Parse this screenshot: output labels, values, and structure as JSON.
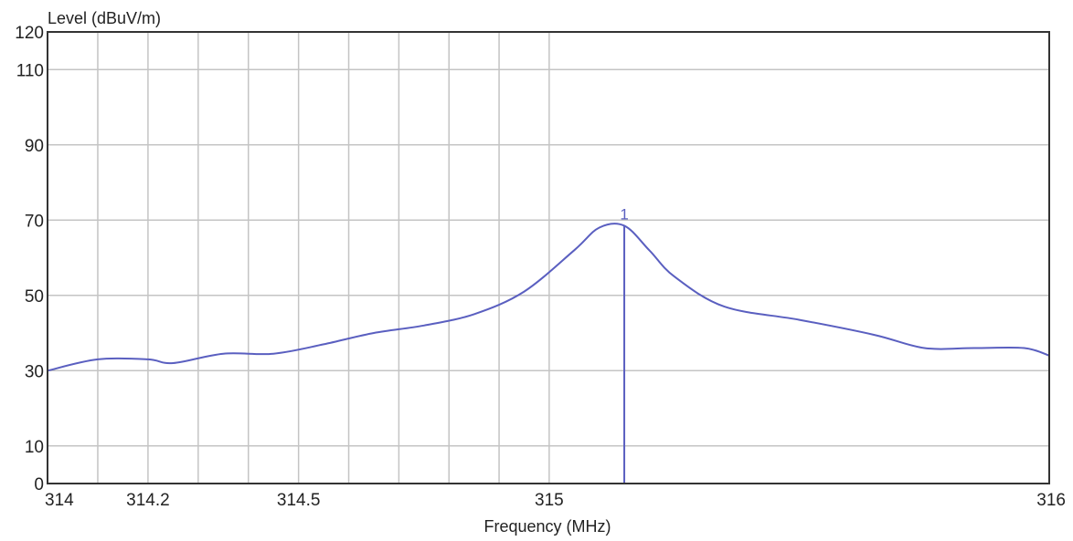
{
  "chart_data": {
    "type": "line",
    "title": "",
    "xlabel": "Frequency (MHz)",
    "ylabel": "Level (dBuV/m)",
    "xlim": [
      314,
      316
    ],
    "ylim": [
      0,
      120
    ],
    "x_scale": "log",
    "grid": true,
    "x_ticks": [
      {
        "value": 314,
        "label": "314"
      },
      {
        "value": 314.2,
        "label": "314.2"
      },
      {
        "value": 314.5,
        "label": "314.5"
      },
      {
        "value": 315,
        "label": "315"
      },
      {
        "value": 316,
        "label": "316"
      }
    ],
    "x_gridlines": [
      314.1,
      314.2,
      314.3,
      314.4,
      314.5,
      314.6,
      314.7,
      314.8,
      314.9,
      315
    ],
    "y_ticks": [
      0,
      10,
      30,
      50,
      70,
      90,
      110,
      120
    ],
    "y_gridlines": [
      10,
      30,
      50,
      70,
      90,
      110
    ],
    "series": [
      {
        "color": "#5a5fc0",
        "x": [
          314.0,
          314.1,
          314.2,
          314.25,
          314.35,
          314.45,
          314.55,
          314.65,
          314.75,
          314.85,
          314.95,
          315.05,
          315.1,
          315.15,
          315.2,
          315.25,
          315.35,
          315.5,
          315.65,
          315.75,
          315.85,
          315.95,
          316.0
        ],
        "y": [
          30,
          33,
          33,
          32,
          34.5,
          34.5,
          37,
          40,
          42,
          45,
          51,
          62,
          68,
          68.5,
          62,
          55,
          47,
          43.5,
          39.5,
          36,
          36,
          36,
          34
        ]
      }
    ],
    "markers": [
      {
        "label": "1",
        "x": 315.15,
        "y": 68.5,
        "color": "#5a5fc0"
      }
    ]
  }
}
